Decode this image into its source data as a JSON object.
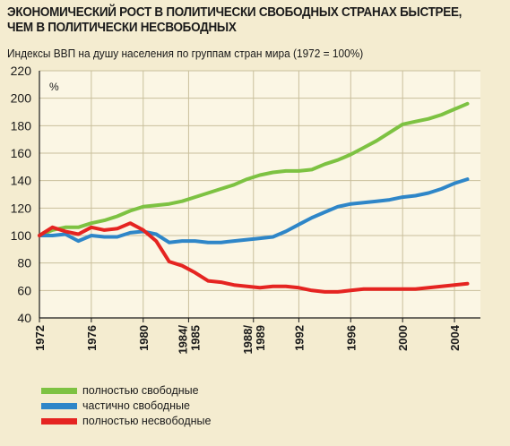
{
  "title_line1": "ЭКОНОМИЧЕСКИЙ РОСТ В ПОЛИТИЧЕСКИ СВОБОДНЫХ СТРАНАХ БЫСТРЕЕ,",
  "title_line2": "ЧЕМ В ПОЛИТИЧЕСКИ НЕСВОБОДНЫХ",
  "subtitle": "Индексы ВВП на душу населения по группам стран мира (1972 = 100%)",
  "chart_data": {
    "type": "line",
    "title": "ЭКОНОМИЧЕСКИЙ РОСТ В ПОЛИТИЧЕСКИ СВОБОДНЫХ СТРАНАХ БЫСТРЕЕ, ЧЕМ В ПОЛИТИЧЕСКИ НЕСВОБОДНЫХ",
    "subtitle": "Индексы ВВП на душу населения по группам стран мира (1972 = 100%)",
    "ylabel": "%",
    "ylim": [
      40,
      220
    ],
    "yticks": [
      40,
      60,
      80,
      100,
      120,
      140,
      160,
      180,
      200,
      220
    ],
    "xlim": [
      1972,
      2006
    ],
    "xticks": [
      {
        "x": 1972,
        "label": "1972"
      },
      {
        "x": 1976,
        "label": "1976"
      },
      {
        "x": 1980,
        "label": "1980"
      },
      {
        "x": 1983.5,
        "label": "1984/ 1985"
      },
      {
        "x": 1988.5,
        "label": "1988/ 1989"
      },
      {
        "x": 1992,
        "label": "1992"
      },
      {
        "x": 1996,
        "label": "1996"
      },
      {
        "x": 2000,
        "label": "2000"
      },
      {
        "x": 2004,
        "label": "2004"
      }
    ],
    "grid": true,
    "legend_position": "bottom-left",
    "series": [
      {
        "name": "полностью свободные",
        "color": "#7dc242",
        "x": [
          1972,
          1973,
          1974,
          1975,
          1976,
          1977,
          1978,
          1979,
          1980,
          1981,
          1982,
          1983,
          1984,
          1985,
          1986,
          1987,
          1988,
          1989,
          1990,
          1991,
          1992,
          1993,
          1994,
          1995,
          1996,
          1997,
          1998,
          1999,
          2000,
          2001,
          2002,
          2003,
          2004,
          2005
        ],
        "y": [
          100,
          104,
          106,
          106,
          109,
          111,
          114,
          118,
          121,
          122,
          123,
          125,
          128,
          131,
          134,
          137,
          141,
          144,
          146,
          147,
          147,
          148,
          152,
          155,
          159,
          164,
          169,
          175,
          181,
          183,
          185,
          188,
          192,
          196
        ]
      },
      {
        "name": "частично свободные",
        "color": "#2e86c8",
        "x": [
          1972,
          1973,
          1974,
          1975,
          1976,
          1977,
          1978,
          1979,
          1980,
          1981,
          1982,
          1983,
          1984,
          1985,
          1986,
          1987,
          1988,
          1989,
          1990,
          1991,
          1992,
          1993,
          1994,
          1995,
          1996,
          1997,
          1998,
          1999,
          2000,
          2001,
          2002,
          2003,
          2004,
          2005
        ],
        "y": [
          100,
          100,
          101,
          96,
          100,
          99,
          99,
          102,
          103,
          101,
          95,
          96,
          96,
          95,
          95,
          96,
          97,
          98,
          99,
          103,
          108,
          113,
          117,
          121,
          123,
          124,
          125,
          126,
          128,
          129,
          131,
          134,
          138,
          141
        ]
      },
      {
        "name": "полностью несвободные",
        "color": "#e52421",
        "x": [
          1972,
          1973,
          1974,
          1975,
          1976,
          1977,
          1978,
          1979,
          1980,
          1981,
          1982,
          1983,
          1984,
          1985,
          1986,
          1987,
          1988,
          1989,
          1990,
          1991,
          1992,
          1993,
          1994,
          1995,
          1996,
          1997,
          1998,
          1999,
          2000,
          2001,
          2002,
          2003,
          2004,
          2005
        ],
        "y": [
          100,
          106,
          103,
          101,
          106,
          104,
          105,
          109,
          104,
          96,
          81,
          78,
          73,
          67,
          66,
          64,
          63,
          62,
          63,
          63,
          62,
          60,
          59,
          59,
          60,
          61,
          61,
          61,
          61,
          61,
          62,
          63,
          64,
          65
        ]
      }
    ]
  }
}
